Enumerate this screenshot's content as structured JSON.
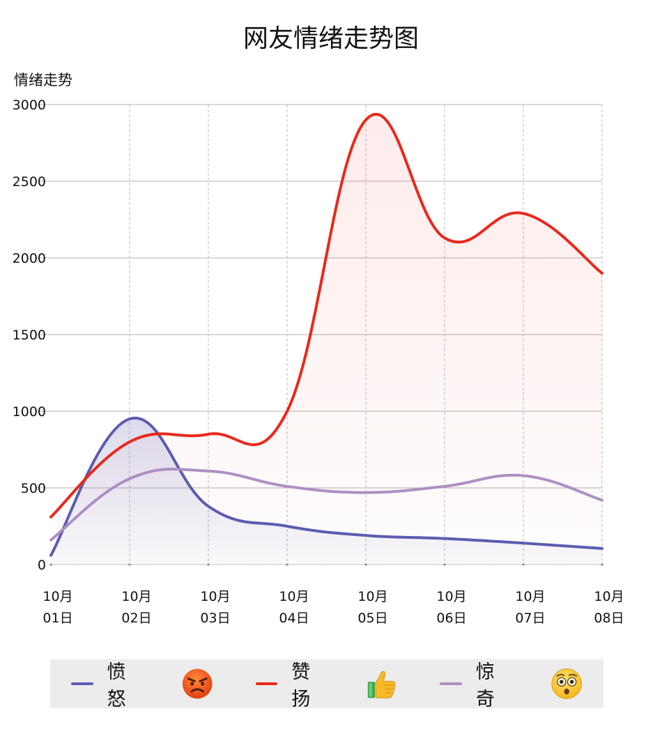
{
  "chart_data": {
    "type": "line",
    "title": "网友情绪走势图",
    "ylabel": "情绪走势",
    "xlabel": "",
    "ylim": [
      0,
      3000
    ],
    "yticks": [
      0,
      500,
      1000,
      1500,
      2000,
      2500,
      3000
    ],
    "categories": [
      "10月01日",
      "10月02日",
      "10月03日",
      "10月04日",
      "10月05日",
      "10月06日",
      "10月07日",
      "10月08日"
    ],
    "series": [
      {
        "name": "愤 怒",
        "color": "#5b5cb0",
        "emoji": "angry-face-icon",
        "values": [
          60,
          950,
          380,
          250,
          190,
          170,
          140,
          105
        ]
      },
      {
        "name": "赞 扬",
        "color": "#e8291c",
        "emoji": "thumbs-up-icon",
        "values": [
          310,
          800,
          850,
          1000,
          2900,
          2130,
          2290,
          1900
        ]
      },
      {
        "name": "惊 奇",
        "color": "#ad8fc4",
        "emoji": "astonished-face-icon",
        "values": [
          160,
          560,
          610,
          510,
          470,
          510,
          580,
          420
        ]
      }
    ],
    "legend_position": "bottom",
    "grid": true,
    "smooth": true
  }
}
